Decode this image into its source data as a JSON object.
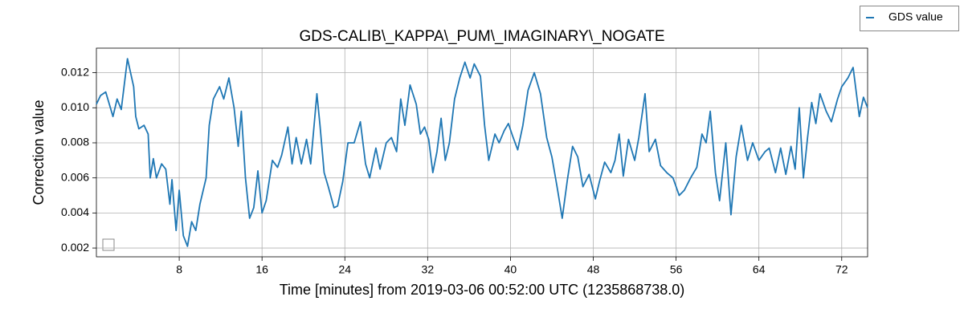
{
  "chart_data": {
    "type": "line",
    "title": "GDS-CALIB\\_KAPPA\\_PUM\\_IMAGINARY\\_NOGATE",
    "xlabel": "Time [minutes] from 2019-03-06 00:52:00 UTC (1235868738.0)",
    "ylabel": "Correction value",
    "xlim": [
      0,
      74.5
    ],
    "ylim": [
      0.0015,
      0.0134
    ],
    "xticks": [
      8,
      16,
      24,
      32,
      40,
      48,
      56,
      64,
      72
    ],
    "yticks": [
      0.002,
      0.004,
      0.006,
      0.008,
      {
        "value": 0.01,
        "label": "0.010"
      },
      0.012
    ],
    "grid": true,
    "legend_position": "upper right",
    "x": [
      0,
      0.4,
      0.9,
      1.6,
      2,
      2.4,
      3,
      3.6,
      3.8,
      4.1,
      4.6,
      5,
      5.2,
      5.5,
      5.8,
      6.3,
      6.7,
      7.1,
      7.3,
      7.7,
      8,
      8.4,
      8.8,
      9.2,
      9.6,
      10,
      10.6,
      10.9,
      11.3,
      11.9,
      12.3,
      12.8,
      13.3,
      13.7,
      14,
      14.4,
      14.8,
      15.2,
      15.6,
      16,
      16.4,
      17,
      17.5,
      17.9,
      18.5,
      18.9,
      19.3,
      19.8,
      20.3,
      20.7,
      21.3,
      21.6,
      22,
      22.4,
      22.95,
      23.3,
      23.8,
      24.3,
      24.9,
      25.5,
      26,
      26.4,
      27,
      27.4,
      28,
      28.5,
      29,
      29.4,
      29.8,
      30.3,
      30.9,
      31.3,
      31.7,
      32.1,
      32.5,
      32.9,
      33.3,
      33.7,
      34.1,
      34.6,
      35.1,
      35.6,
      36.1,
      36.5,
      37.1,
      37.5,
      37.9,
      38.5,
      38.9,
      39.4,
      39.8,
      40.2,
      40.7,
      41.2,
      41.7,
      42.3,
      42.9,
      43.5,
      44,
      44.5,
      45,
      45.5,
      46,
      46.5,
      47,
      47.6,
      48.2,
      48.6,
      49.1,
      49.7,
      50.1,
      50.5,
      50.9,
      51.4,
      52,
      52.4,
      53,
      53.4,
      54,
      54.5,
      55.1,
      55.7,
      56.3,
      56.8,
      57.4,
      58,
      58.5,
      58.9,
      59.3,
      59.8,
      60.2,
      60.8,
      61.3,
      61.8,
      62.3,
      62.9,
      63.4,
      64,
      64.6,
      65,
      65.6,
      66.1,
      66.6,
      67.1,
      67.5,
      67.9,
      68.3,
      68.7,
      69.1,
      69.5,
      69.9,
      70.5,
      71,
      71.6,
      72,
      72.6,
      73.1,
      73.7,
      74.1,
      74.5
    ],
    "series": [
      {
        "name": "GDS value",
        "color": "#1f77b4",
        "values": [
          0.0102,
          0.0107,
          0.0109,
          0.0095,
          0.0105,
          0.0099,
          0.0128,
          0.0112,
          0.0095,
          0.0088,
          0.009,
          0.0085,
          0.006,
          0.0071,
          0.006,
          0.0068,
          0.0065,
          0.0045,
          0.0059,
          0.003,
          0.0053,
          0.0027,
          0.0021,
          0.0035,
          0.003,
          0.0045,
          0.006,
          0.009,
          0.0105,
          0.0112,
          0.0105,
          0.0117,
          0.01,
          0.0078,
          0.0098,
          0.006,
          0.0037,
          0.0043,
          0.0064,
          0.004,
          0.0047,
          0.007,
          0.0066,
          0.0073,
          0.0089,
          0.0068,
          0.0083,
          0.0068,
          0.0082,
          0.0068,
          0.0108,
          0.009,
          0.0063,
          0.0055,
          0.0043,
          0.0044,
          0.0058,
          0.008,
          0.008,
          0.0092,
          0.0068,
          0.006,
          0.0077,
          0.0065,
          0.008,
          0.0083,
          0.0075,
          0.0105,
          0.009,
          0.0113,
          0.0102,
          0.0085,
          0.0089,
          0.0082,
          0.0063,
          0.0075,
          0.0094,
          0.007,
          0.008,
          0.0105,
          0.0117,
          0.0126,
          0.0117,
          0.0125,
          0.0118,
          0.009,
          0.007,
          0.0085,
          0.008,
          0.0087,
          0.0091,
          0.0084,
          0.0076,
          0.009,
          0.011,
          0.012,
          0.0108,
          0.0083,
          0.0072,
          0.0055,
          0.0037,
          0.0059,
          0.0078,
          0.0072,
          0.0055,
          0.0062,
          0.0048,
          0.0058,
          0.0069,
          0.0063,
          0.007,
          0.0085,
          0.0061,
          0.0082,
          0.007,
          0.0083,
          0.0108,
          0.0075,
          0.0082,
          0.0067,
          0.0063,
          0.006,
          0.005,
          0.0053,
          0.006,
          0.0066,
          0.0085,
          0.008,
          0.0098,
          0.0063,
          0.0047,
          0.008,
          0.0039,
          0.0072,
          0.009,
          0.007,
          0.008,
          0.007,
          0.0075,
          0.0077,
          0.0063,
          0.0077,
          0.0062,
          0.0078,
          0.0065,
          0.01,
          0.006,
          0.0083,
          0.0103,
          0.0091,
          0.0108,
          0.0098,
          0.0092,
          0.0105,
          0.0112,
          0.0117,
          0.0123,
          0.0095,
          0.0106,
          0.01
        ]
      }
    ]
  }
}
